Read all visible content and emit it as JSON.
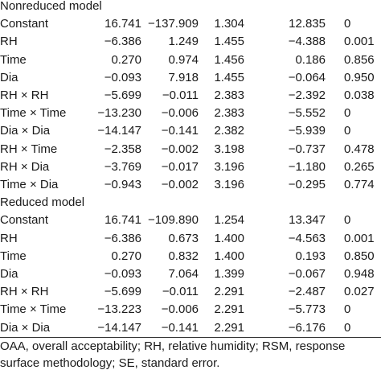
{
  "table": {
    "sections": [
      {
        "title": "Nonreduced model",
        "rows": [
          [
            "Constant",
            "16.741",
            "−137.909",
            "1.304",
            "12.835",
            "0"
          ],
          [
            "RH",
            "−6.386",
            "1.249",
            "1.455",
            "−4.388",
            "0.001"
          ],
          [
            "Time",
            "0.270",
            "0.974",
            "1.456",
            "0.186",
            "0.856"
          ],
          [
            "Dia",
            "−0.093",
            "7.918",
            "1.455",
            "−0.064",
            "0.950"
          ],
          [
            "RH × RH",
            "−5.699",
            "−0.011",
            "2.383",
            "−2.392",
            "0.038"
          ],
          [
            "Time × Time",
            "−13.230",
            "−0.006",
            "2.383",
            "−5.552",
            "0"
          ],
          [
            "Dia × Dia",
            "−14.147",
            "−0.141",
            "2.382",
            "−5.939",
            "0"
          ],
          [
            "RH × Time",
            "−2.358",
            "−0.002",
            "3.198",
            "−0.737",
            "0.478"
          ],
          [
            "RH × Dia",
            "−3.769",
            "−0.017",
            "3.196",
            "−1.180",
            "0.265"
          ],
          [
            "Time × Dia",
            "−0.943",
            "−0.002",
            "3.196",
            "−0.295",
            "0.774"
          ]
        ]
      },
      {
        "title": "Reduced model",
        "rows": [
          [
            "Constant",
            "16.741",
            "−109.890",
            "1.254",
            "13.347",
            "0"
          ],
          [
            "RH",
            "−6.386",
            "0.673",
            "1.400",
            "−4.563",
            "0.001"
          ],
          [
            "Time",
            "0.270",
            "0.832",
            "1.400",
            "0.193",
            "0.850"
          ],
          [
            "Dia",
            "−0.093",
            "7.064",
            "1.399",
            "−0.067",
            "0.948"
          ],
          [
            "RH × RH",
            "−5.699",
            "−0.011",
            "2.291",
            "−2.487",
            "0.027"
          ],
          [
            "Time × Time",
            "−13.223",
            "−0.006",
            "2.291",
            "−5.773",
            "0"
          ],
          [
            "Dia × Dia",
            "−14.147",
            "−0.141",
            "2.291",
            "−6.176",
            "0"
          ]
        ]
      }
    ]
  },
  "footnote": "OAA, overall acceptability; RH, relative humidity; RSM, response surface methodology; SE, standard error."
}
